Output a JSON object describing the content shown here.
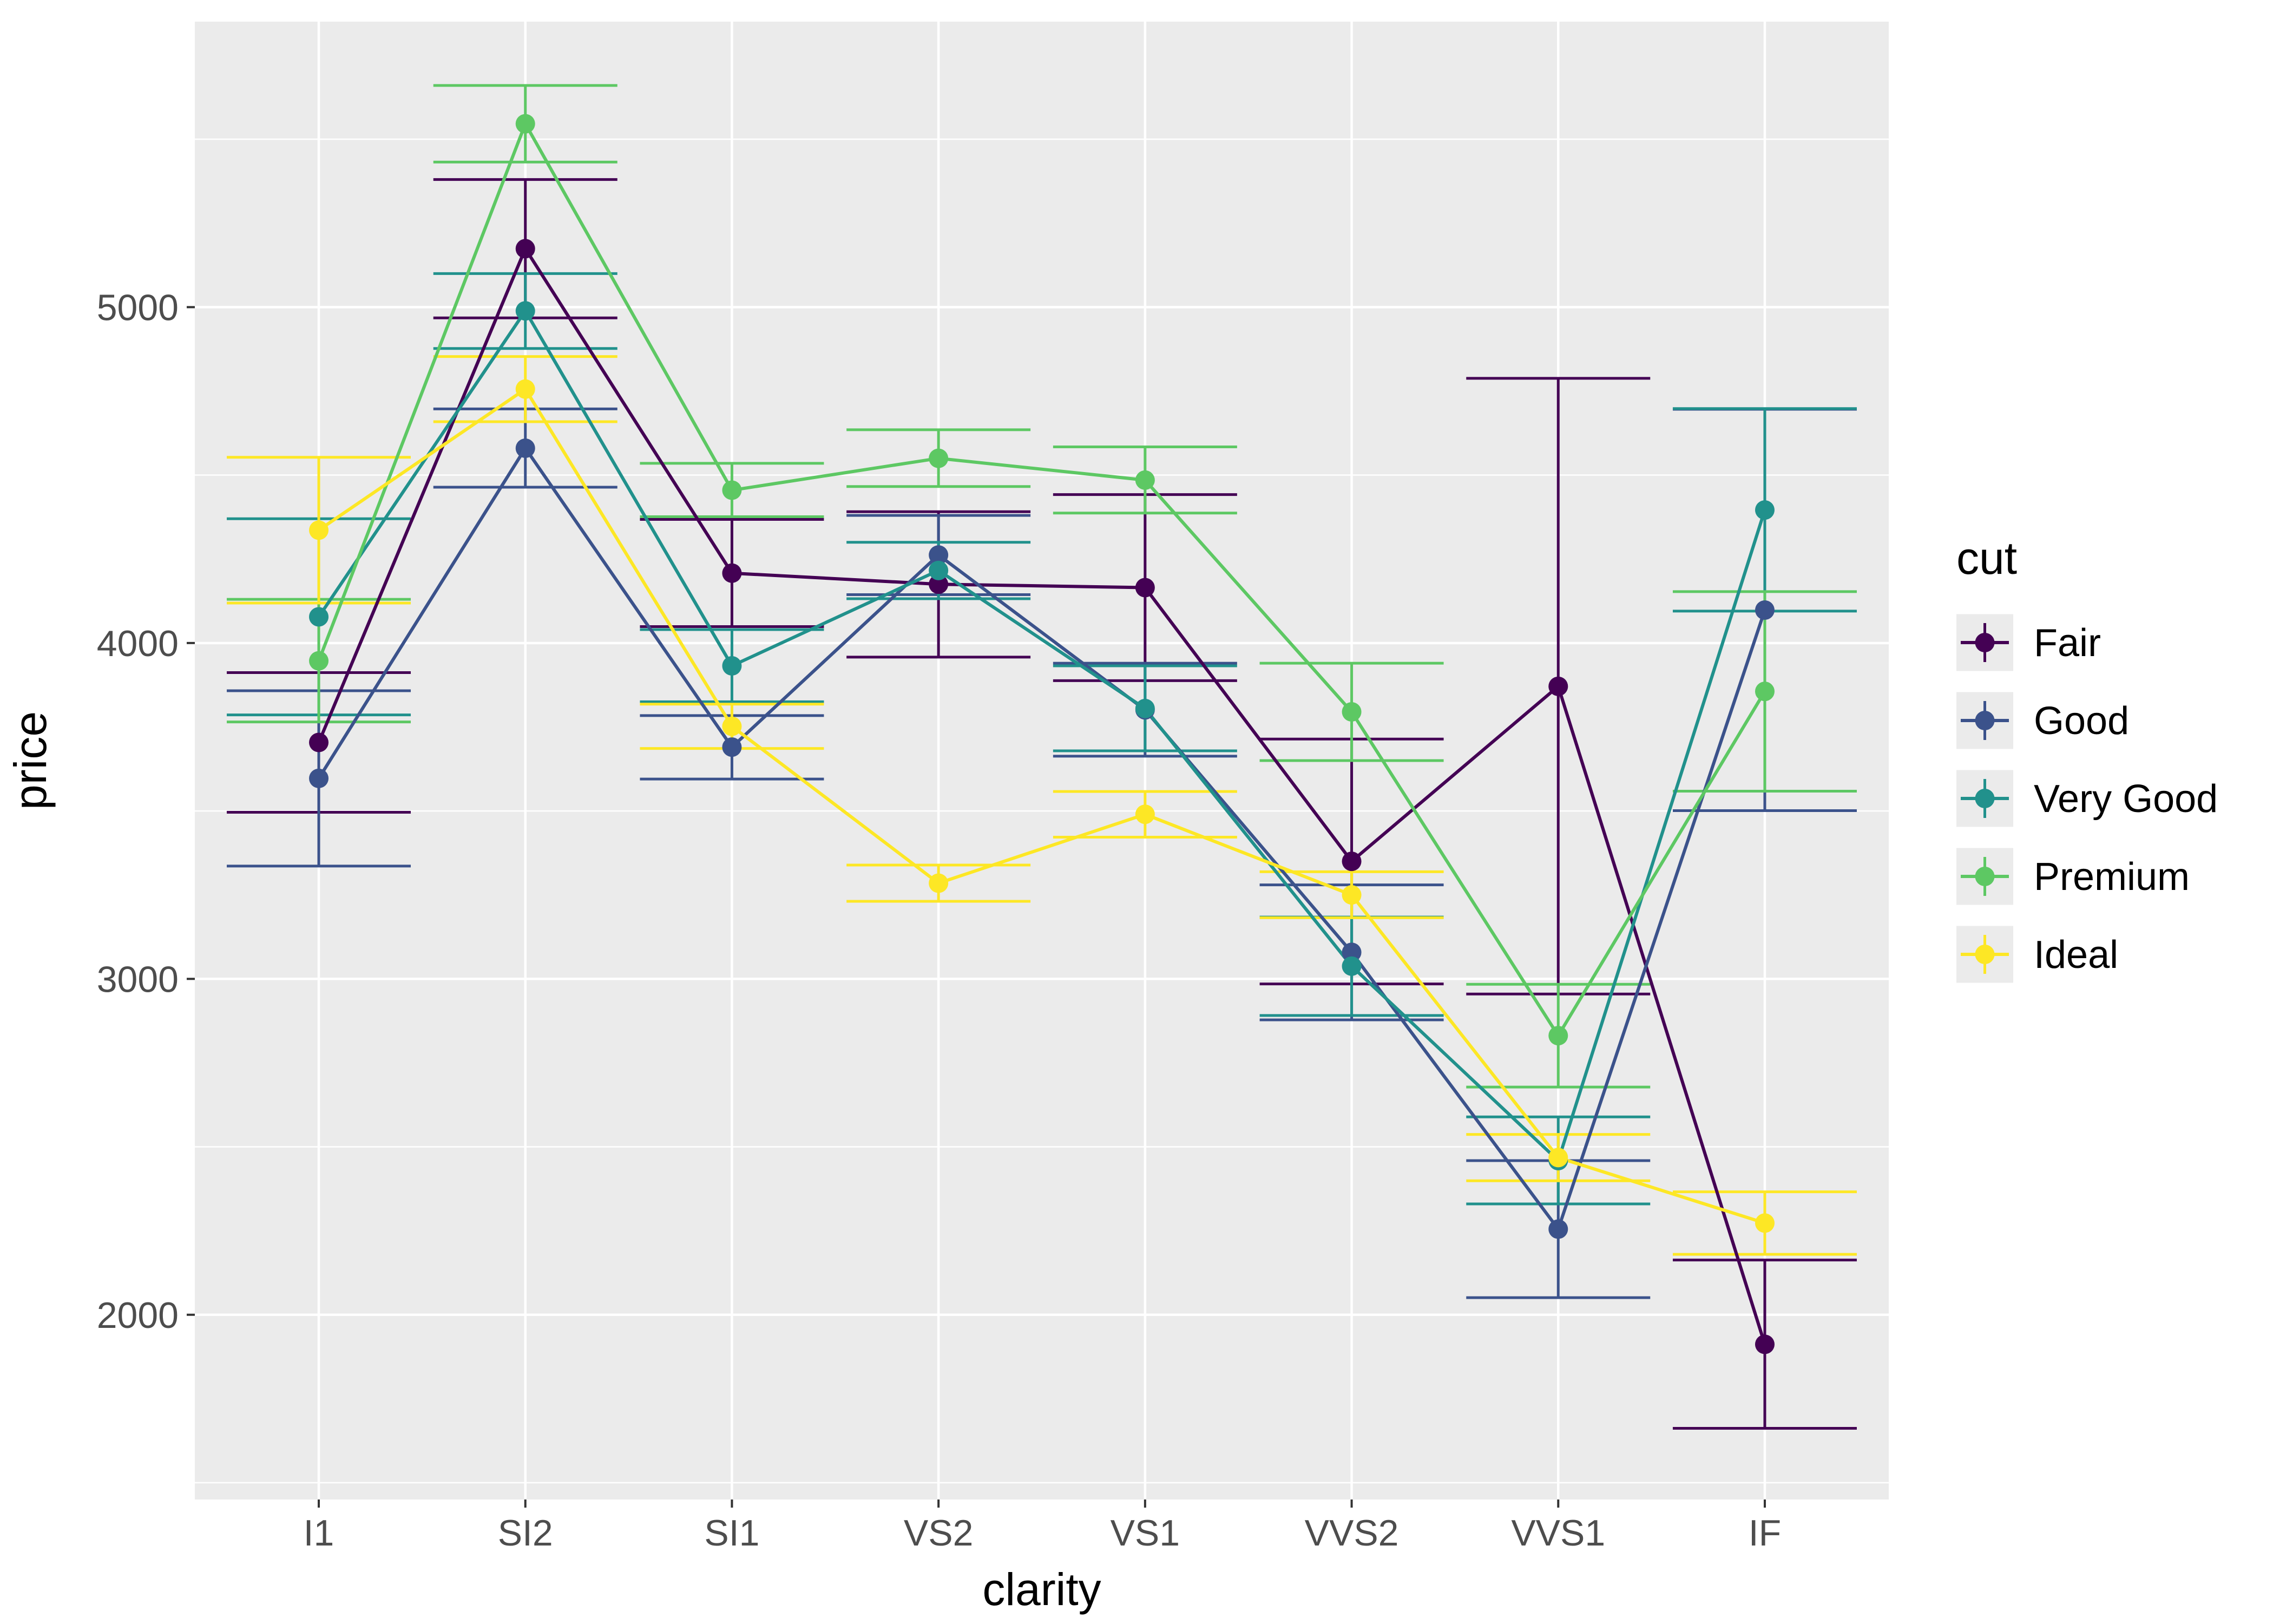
{
  "chart_data": {
    "type": "line",
    "title": "",
    "xlabel": "clarity",
    "ylabel": "price",
    "legend_title": "cut",
    "legend_position": "right",
    "categories": [
      "I1",
      "SI2",
      "SI1",
      "VS2",
      "VS1",
      "VVS2",
      "VVS1",
      "IF"
    ],
    "ylim": [
      1450,
      5850
    ],
    "yticks": [
      2000,
      3000,
      4000,
      5000
    ],
    "yticks_minor": [
      1500,
      2500,
      3500,
      4500,
      5500
    ],
    "grid": true,
    "panel_bg": "#EBEBEB",
    "grid_color": "#FFFFFF",
    "error_bars": true,
    "series": [
      {
        "name": "Fair",
        "color": "#440154",
        "values": [
          3704,
          5174,
          4208,
          4175,
          4165,
          3350,
          3871,
          1912
        ],
        "lower": [
          3496,
          4968,
          4049,
          3958,
          3888,
          2985,
          2955,
          1662
        ],
        "upper": [
          3912,
          5380,
          4368,
          4391,
          4442,
          3714,
          4788,
          2163
        ]
      },
      {
        "name": "Good",
        "color": "#3B528B",
        "values": [
          3597,
          4580,
          3690,
          4262,
          3801,
          3079,
          2255,
          4098
        ],
        "lower": [
          3336,
          4464,
          3595,
          4144,
          3663,
          2878,
          2051,
          3501
        ],
        "upper": [
          3858,
          4697,
          3784,
          4380,
          3940,
          3280,
          2459,
          4696
        ]
      },
      {
        "name": "Very Good",
        "color": "#21918C",
        "values": [
          4078,
          4989,
          3932,
          4216,
          3805,
          3038,
          2459,
          4396
        ],
        "lower": [
          3786,
          4877,
          3825,
          4132,
          3679,
          2891,
          2330,
          4095
        ],
        "upper": [
          4370,
          5100,
          4040,
          4300,
          3932,
          3184,
          2589,
          4698
        ]
      },
      {
        "name": "Premium",
        "color": "#5DC863",
        "values": [
          3947,
          5546,
          4455,
          4550,
          4485,
          3795,
          2831,
          3856
        ],
        "lower": [
          3765,
          5432,
          4376,
          4466,
          4387,
          3650,
          2678,
          3559
        ],
        "upper": [
          4130,
          5660,
          4535,
          4635,
          4584,
          3940,
          2984,
          4153
        ]
      },
      {
        "name": "Ideal",
        "color": "#FDE725",
        "values": [
          4336,
          4756,
          3752,
          3285,
          3490,
          3250,
          2468,
          2273
        ],
        "lower": [
          4119,
          4659,
          3686,
          3231,
          3422,
          3182,
          2399,
          2180
        ],
        "upper": [
          4553,
          4853,
          3818,
          3339,
          3558,
          3319,
          2537,
          2366
        ]
      }
    ]
  }
}
